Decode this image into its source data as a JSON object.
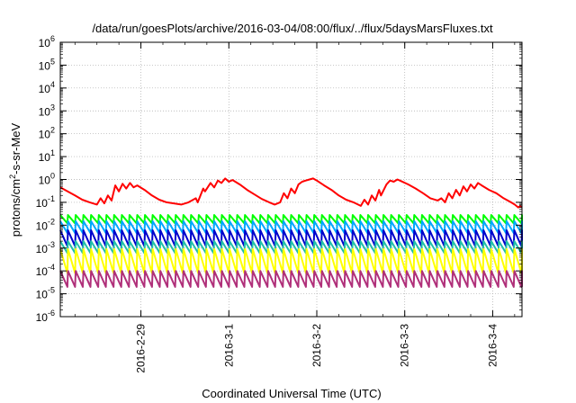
{
  "chart_data": {
    "type": "line",
    "title": "/data/run/goesPlots/archive/2016-03-04/08:00/flux/../flux/5daysMarsFluxes.txt",
    "xlabel": "Coordinated Universal Time (UTC)",
    "ylabel": "protons/cm²-s-sr-MeV",
    "ylabel_parts": {
      "base": "protons/cm",
      "sup": "2",
      "rest": "-s-sr-MeV"
    },
    "yscale": "log",
    "ylim_exp": [
      -6,
      6
    ],
    "ytick_exponents": [
      "-6",
      "-5",
      "-4",
      "-3",
      "-2",
      "-1",
      "0",
      "1",
      "2",
      "3",
      "4",
      "5",
      "6"
    ],
    "ytick_base": "10",
    "xlim": [
      "2016-02-28T02:00",
      "2016-03-04T08:00"
    ],
    "xticks": [
      {
        "label": "2016-2-29",
        "t": "2016-02-29T00:00"
      },
      {
        "label": "2016-3-1",
        "t": "2016-03-01T00:00"
      },
      {
        "label": "2016-3-2",
        "t": "2016-03-02T00:00"
      },
      {
        "label": "2016-3-3",
        "t": "2016-03-03T00:00"
      },
      {
        "label": "2016-3-4",
        "t": "2016-03-04T00:00"
      }
    ],
    "grid": true,
    "sawtooth_period_hours": 2.1,
    "series": [
      {
        "color": "#ff0000",
        "points": [
          [
            "2016-02-28T02:00",
            0.45
          ],
          [
            "2016-02-28T04:00",
            0.3
          ],
          [
            "2016-02-28T06:00",
            0.2
          ],
          [
            "2016-02-28T08:00",
            0.13
          ],
          [
            "2016-02-28T10:00",
            0.1
          ],
          [
            "2016-02-28T12:00",
            0.08
          ],
          [
            "2016-02-28T13:00",
            0.15
          ],
          [
            "2016-02-28T14:00",
            0.09
          ],
          [
            "2016-02-28T15:00",
            0.2
          ],
          [
            "2016-02-28T16:00",
            0.12
          ],
          [
            "2016-02-28T17:00",
            0.55
          ],
          [
            "2016-02-28T18:00",
            0.3
          ],
          [
            "2016-02-28T19:00",
            0.65
          ],
          [
            "2016-02-28T20:00",
            0.4
          ],
          [
            "2016-02-28T21:00",
            0.7
          ],
          [
            "2016-02-28T22:00",
            0.45
          ],
          [
            "2016-02-28T23:00",
            0.55
          ],
          [
            "2016-02-29T01:00",
            0.35
          ],
          [
            "2016-02-29T03:00",
            0.2
          ],
          [
            "2016-02-29T05:00",
            0.13
          ],
          [
            "2016-02-29T07:00",
            0.1
          ],
          [
            "2016-02-29T09:00",
            0.09
          ],
          [
            "2016-02-29T11:00",
            0.08
          ],
          [
            "2016-02-29T13:00",
            0.1
          ],
          [
            "2016-02-29T15:00",
            0.15
          ],
          [
            "2016-02-29T15:30",
            0.1
          ],
          [
            "2016-02-29T17:00",
            0.4
          ],
          [
            "2016-02-29T17:30",
            0.3
          ],
          [
            "2016-02-29T19:00",
            0.7
          ],
          [
            "2016-02-29T20:00",
            0.45
          ],
          [
            "2016-02-29T21:00",
            0.9
          ],
          [
            "2016-02-29T22:00",
            0.7
          ],
          [
            "2016-02-29T23:00",
            1.1
          ],
          [
            "2016-03-01T00:00",
            0.8
          ],
          [
            "2016-03-01T01:00",
            0.95
          ],
          [
            "2016-03-01T03:00",
            0.6
          ],
          [
            "2016-03-01T05:00",
            0.35
          ],
          [
            "2016-03-01T07:00",
            0.22
          ],
          [
            "2016-03-01T09:00",
            0.14
          ],
          [
            "2016-03-01T11:00",
            0.1
          ],
          [
            "2016-03-01T12:30",
            0.08
          ],
          [
            "2016-03-01T14:00",
            0.1
          ],
          [
            "2016-03-01T15:00",
            0.25
          ],
          [
            "2016-03-01T16:00",
            0.15
          ],
          [
            "2016-03-01T17:00",
            0.4
          ],
          [
            "2016-03-01T18:00",
            0.25
          ],
          [
            "2016-03-01T19:00",
            0.6
          ],
          [
            "2016-03-01T20:00",
            0.8
          ],
          [
            "2016-03-01T21:00",
            0.9
          ],
          [
            "2016-03-01T22:00",
            1.0
          ],
          [
            "2016-03-01T23:00",
            1.1
          ],
          [
            "2016-03-02T00:00",
            0.9
          ],
          [
            "2016-03-02T02:00",
            0.55
          ],
          [
            "2016-03-02T04:00",
            0.35
          ],
          [
            "2016-03-02T06:00",
            0.2
          ],
          [
            "2016-03-02T08:00",
            0.13
          ],
          [
            "2016-03-02T10:00",
            0.1
          ],
          [
            "2016-03-02T12:00",
            0.07
          ],
          [
            "2016-03-02T13:00",
            0.13
          ],
          [
            "2016-03-02T14:00",
            0.08
          ],
          [
            "2016-03-02T15:00",
            0.2
          ],
          [
            "2016-03-02T16:00",
            0.12
          ],
          [
            "2016-03-02T17:00",
            0.35
          ],
          [
            "2016-03-02T17:30",
            0.2
          ],
          [
            "2016-03-02T19:00",
            0.6
          ],
          [
            "2016-03-02T20:00",
            0.9
          ],
          [
            "2016-03-02T21:00",
            0.8
          ],
          [
            "2016-03-02T22:00",
            1.0
          ],
          [
            "2016-03-02T23:00",
            0.85
          ],
          [
            "2016-03-03T01:00",
            0.6
          ],
          [
            "2016-03-03T03:00",
            0.4
          ],
          [
            "2016-03-03T05:00",
            0.25
          ],
          [
            "2016-03-03T07:00",
            0.15
          ],
          [
            "2016-03-03T09:00",
            0.12
          ],
          [
            "2016-03-03T10:00",
            0.15
          ],
          [
            "2016-03-03T11:00",
            0.1
          ],
          [
            "2016-03-03T12:00",
            0.25
          ],
          [
            "2016-03-03T13:00",
            0.15
          ],
          [
            "2016-03-03T14:00",
            0.35
          ],
          [
            "2016-03-03T15:00",
            0.2
          ],
          [
            "2016-03-03T16:00",
            0.5
          ],
          [
            "2016-03-03T17:00",
            0.3
          ],
          [
            "2016-03-03T18:00",
            0.6
          ],
          [
            "2016-03-03T19:00",
            0.4
          ],
          [
            "2016-03-03T20:00",
            0.7
          ],
          [
            "2016-03-03T21:00",
            0.55
          ],
          [
            "2016-03-03T23:00",
            0.35
          ],
          [
            "2016-03-04T01:00",
            0.25
          ],
          [
            "2016-03-04T03:00",
            0.15
          ],
          [
            "2016-03-04T05:00",
            0.1
          ],
          [
            "2016-03-04T06:00",
            0.08
          ],
          [
            "2016-03-04T07:00",
            0.06
          ],
          [
            "2016-03-04T07:30",
            0.07
          ],
          [
            "2016-03-04T08:00",
            0.06
          ]
        ]
      },
      {
        "color": "#00ff00",
        "peak": 0.028,
        "trough": 0.012
      },
      {
        "color": "#00a8ff",
        "peak": 0.015,
        "trough": 0.0045
      },
      {
        "color": "#0000cc",
        "peak": 0.006,
        "trough": 0.0012
      },
      {
        "color": "#20c0a8",
        "peak": 0.002,
        "trough": 0.0006
      },
      {
        "color": "#ffff00",
        "peak": 0.0009,
        "trough": 8e-05
      },
      {
        "color": "#b0307a",
        "peak": 0.0001,
        "trough": 2e-05
      }
    ]
  }
}
